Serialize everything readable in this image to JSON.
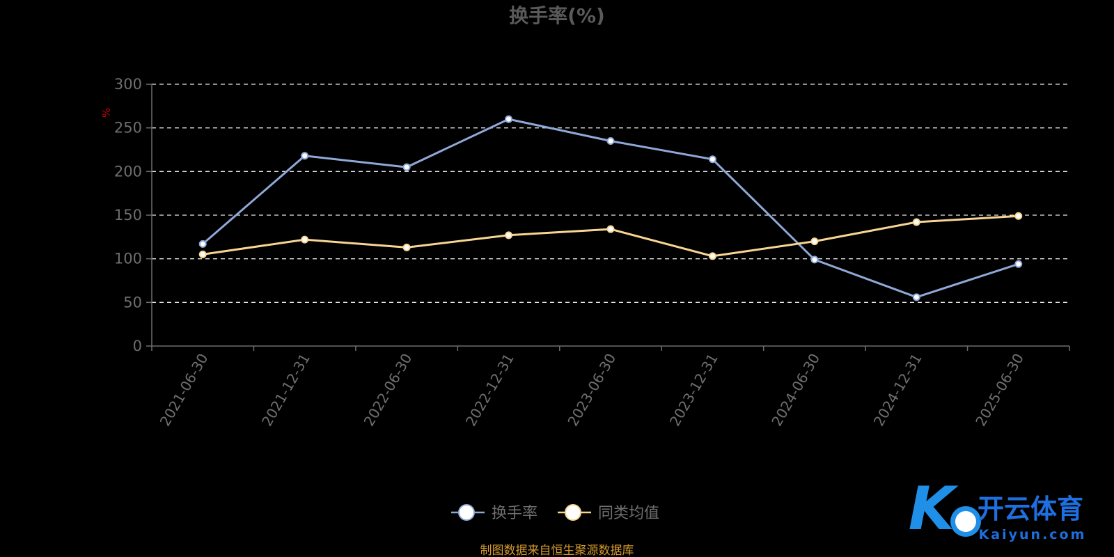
{
  "title": "换手率(%)",
  "y_unit": "%",
  "source": "制图数据来自恒生聚源数据库",
  "logo": {
    "name": "开云体育",
    "domain": "Kaiyun.com",
    "mark": "K"
  },
  "colors": {
    "series1": "#8fa8d8",
    "series2": "#f8d592",
    "marker_fill": "#ffffff",
    "background": "#000000"
  },
  "chart_data": {
    "type": "line",
    "title": "换手率(%)",
    "x": [
      "2021-06-30",
      "2021-12-31",
      "2022-06-30",
      "2022-12-31",
      "2023-06-30",
      "2023-12-31",
      "2024-06-30",
      "2024-12-31",
      "2025-06-30"
    ],
    "ylabel": "%",
    "ylim": [
      0,
      300
    ],
    "yticks": [
      0,
      50,
      100,
      150,
      200,
      250,
      300
    ],
    "grid": true,
    "legend_position": "bottom-center",
    "series": [
      {
        "name": "换手率",
        "values": [
          117,
          218,
          205,
          260,
          235,
          214,
          99,
          56,
          94
        ]
      },
      {
        "name": "同类均值",
        "values": [
          105,
          122,
          113,
          127,
          134,
          103,
          120,
          142,
          149
        ]
      }
    ]
  }
}
